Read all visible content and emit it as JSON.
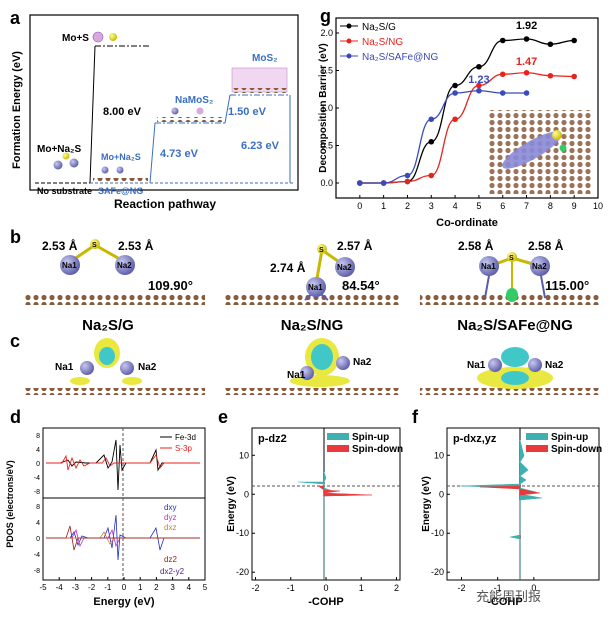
{
  "panel_labels": {
    "a": "a",
    "b": "b",
    "c": "c",
    "d": "d",
    "e": "e",
    "f": "f",
    "g": "g"
  },
  "panel_a": {
    "ylabel": "Formation Energy (eV)",
    "xlabel": "Reaction pathway",
    "states": [
      "Mo+S",
      "Mo+Na₂S",
      "No substrate",
      "Mo+Na₂S",
      "SAFe@NG",
      "NaMoS₂",
      "MoS₂"
    ],
    "energies": [
      "8.00 eV",
      "4.73 eV",
      "1.50 eV",
      "6.23 eV"
    ]
  },
  "panel_b": {
    "titles": [
      "Na₂S/G",
      "Na₂S/NG",
      "Na₂S/SAFe@NG"
    ],
    "bonds_g": [
      "2.53 Å",
      "2.53 Å"
    ],
    "bonds_ng": [
      "2.74 Å",
      "2.57 Å"
    ],
    "bonds_fe": [
      "2.58 Å",
      "2.58 Å"
    ],
    "angles": [
      "109.90°",
      "84.54°",
      "115.00°"
    ],
    "atoms": {
      "na1": "Na1",
      "na2": "Na2",
      "s": "S"
    }
  },
  "panel_c": {
    "labels": {
      "na1": "Na1",
      "na2": "Na2"
    }
  },
  "panel_d": {
    "ylabel": "PDOS (electrons/eV)",
    "xlabel": "Energy (eV)",
    "xticks": [
      "-5",
      "-4",
      "-3",
      "-2",
      "-1",
      "0",
      "1",
      "2",
      "3",
      "4",
      "5"
    ],
    "top_yticks": [
      "8",
      "4",
      "0",
      "-4",
      "-8"
    ],
    "bot_yticks": [
      "8",
      "4",
      "0",
      "-4",
      "-8"
    ],
    "legend_top": [
      "Fe-3d",
      "S-3p"
    ],
    "legend_bot": [
      "dxy",
      "dyz",
      "dxz",
      "dz2",
      "dx2-y2"
    ],
    "colors": {
      "fe": "#000000",
      "s": "#e8231e",
      "dxy": "#2030c0",
      "dyz": "#c030c0",
      "dxz": "#d08020",
      "dz2": "#a01a1a",
      "dx2y2": "#502080"
    }
  },
  "panel_e": {
    "title": "p-dz2",
    "ylabel": "Energy (eV)",
    "xlabel": "-COHP",
    "xticks": [
      "-2",
      "-1",
      "0",
      "1",
      "2"
    ],
    "yticks": [
      "10",
      "0",
      "-10",
      "-20"
    ],
    "legend": [
      "Spin-up",
      "Spin-down"
    ]
  },
  "panel_f": {
    "title": "p-dxz,yz",
    "ylabel": "Energy (eV)",
    "xlabel": "-COHP",
    "xticks": [
      "-2",
      "-1",
      "0"
    ],
    "yticks": [
      "10",
      "0",
      "-10",
      "-20"
    ],
    "legend": [
      "Spin-up",
      "Spin-down"
    ]
  },
  "legend_colors": {
    "spin_up": "#3fb0b0",
    "spin_down": "#e83a3a"
  },
  "chart_data": {
    "type": "line",
    "title": "",
    "xlabel": "Co-ordinate",
    "ylabel": "Decomposition Barrier (eV)",
    "xlim": [
      -1,
      10
    ],
    "ylim": [
      -0.2,
      2.2
    ],
    "xticks": [
      "0",
      "1",
      "2",
      "3",
      "4",
      "5",
      "6",
      "7",
      "8",
      "9",
      "10"
    ],
    "yticks": [
      "0.0",
      "0.5",
      "1.0",
      "1.5",
      "2.0"
    ],
    "series": [
      {
        "name": "Na₂S/G",
        "color": "#000000",
        "x": [
          0,
          1,
          2,
          3,
          4,
          5,
          6,
          7,
          8,
          9
        ],
        "values": [
          0.0,
          0.0,
          0.02,
          0.55,
          1.3,
          1.55,
          1.9,
          1.92,
          1.85,
          1.9
        ]
      },
      {
        "name": "Na₂S/NG",
        "color": "#e8231e",
        "x": [
          0,
          1,
          2,
          3,
          4,
          5,
          6,
          7,
          8,
          9
        ],
        "values": [
          0.0,
          0.0,
          0.02,
          0.1,
          0.85,
          1.3,
          1.45,
          1.47,
          1.43,
          1.42
        ]
      },
      {
        "name": "Na₂S/SAFe@NG",
        "color": "#3a4ab8",
        "x": [
          0,
          1,
          2,
          3,
          4,
          5,
          6,
          7
        ],
        "values": [
          0.0,
          0.0,
          0.1,
          0.85,
          1.2,
          1.23,
          1.2,
          1.2
        ]
      }
    ],
    "annotations": [
      "1.92",
      "1.47",
      "1.23"
    ]
  },
  "watermark": "充能周刊报"
}
